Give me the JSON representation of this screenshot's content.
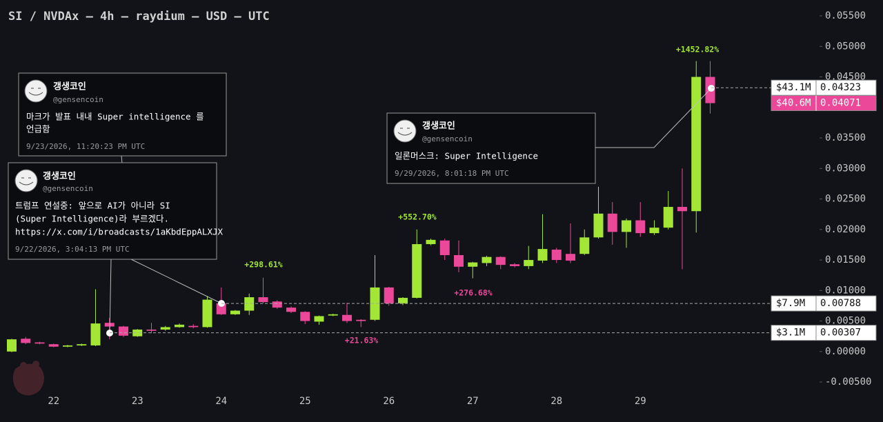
{
  "chart_data": {
    "type": "candlestick",
    "title": "SI / NVDAx — 4h — raydium — USD — UTC",
    "categories": [
      null,
      null,
      null,
      "22",
      null,
      null,
      null,
      null,
      null,
      "23",
      null,
      null,
      null,
      null,
      null,
      "24",
      null,
      null,
      null,
      null,
      null,
      "25",
      null,
      null,
      null,
      null,
      null,
      "26",
      null,
      null,
      null,
      null,
      null,
      "27",
      null,
      null,
      null,
      null,
      null,
      "28",
      null,
      null,
      null,
      null,
      null,
      "29",
      null,
      null,
      null,
      null,
      null
    ],
    "open": [
      0.0,
      0.0021,
      0.0015,
      0.0012,
      0.0008,
      0.001,
      0.001,
      0.0047,
      0.0041,
      0.0025,
      0.0036,
      0.0036,
      0.004,
      0.0042,
      0.004,
      0.0079,
      0.0061,
      0.0067,
      0.0089,
      0.0082,
      0.0072,
      0.0065,
      0.0049,
      0.0059,
      0.006,
      0.0052,
      0.0052,
      0.0105,
      0.0079,
      0.0088,
      0.0176,
      0.0182,
      0.0158,
      0.0139,
      0.0145,
      0.0155,
      0.0143,
      0.014,
      0.0149,
      0.0167,
      0.016,
      0.016,
      0.0187,
      0.0226,
      0.0196,
      0.0215,
      0.0194,
      0.0203,
      0.0237,
      0.023,
      0.045
    ],
    "high": [
      0.0021,
      0.0024,
      0.0016,
      0.0013,
      0.0011,
      0.0013,
      0.0102,
      0.0055,
      0.0042,
      0.0037,
      0.0047,
      0.0042,
      0.0046,
      0.0045,
      0.0091,
      0.0105,
      0.0068,
      0.0095,
      0.0121,
      0.0084,
      0.0074,
      0.0066,
      0.0059,
      0.0062,
      0.008,
      0.0053,
      0.0158,
      0.0106,
      0.0089,
      0.02,
      0.0185,
      0.0185,
      0.0182,
      0.0147,
      0.0157,
      0.0156,
      0.0145,
      0.0173,
      0.0225,
      0.017,
      0.021,
      0.02,
      0.027,
      0.0245,
      0.0218,
      0.0245,
      0.0215,
      0.0263,
      0.03,
      0.0476,
      0.0476
    ],
    "low": [
      -0.0001,
      0.0012,
      0.0012,
      0.0007,
      0.0007,
      0.0009,
      0.0009,
      0.002,
      0.0024,
      0.0024,
      0.003,
      0.0034,
      0.0039,
      0.0038,
      0.0039,
      0.006,
      0.006,
      0.006,
      0.0079,
      0.007,
      0.0063,
      0.0045,
      0.0044,
      0.0058,
      0.0047,
      0.004,
      0.005,
      0.0075,
      0.0076,
      0.0087,
      0.0174,
      0.015,
      0.013,
      0.012,
      0.014,
      0.0135,
      0.0138,
      0.0135,
      0.0145,
      0.0145,
      0.0145,
      0.0158,
      0.0185,
      0.0175,
      0.017,
      0.0188,
      0.0191,
      0.02,
      0.0135,
      0.0195,
      0.039
    ],
    "close": [
      0.002,
      0.0014,
      0.0013,
      0.0008,
      0.001,
      0.0012,
      0.0046,
      0.0041,
      0.0026,
      0.0036,
      0.0034,
      0.004,
      0.0044,
      0.004,
      0.0085,
      0.0061,
      0.0067,
      0.0089,
      0.0081,
      0.0072,
      0.0065,
      0.005,
      0.0058,
      0.0061,
      0.005,
      0.005,
      0.0105,
      0.0079,
      0.0088,
      0.0176,
      0.0183,
      0.0158,
      0.0139,
      0.0146,
      0.0155,
      0.0142,
      0.014,
      0.015,
      0.0168,
      0.015,
      0.0149,
      0.0187,
      0.0226,
      0.0196,
      0.0215,
      0.0194,
      0.0203,
      0.0237,
      0.023,
      0.045,
      0.0407
    ],
    "up_color": "#a3e635",
    "down_color": "#ec4899",
    "ylim": [
      -0.0068,
      0.0576
    ],
    "yticks": [
      {
        "value": -0.005,
        "label": "-0.00500"
      },
      {
        "value": 0,
        "label": "0.00000"
      },
      {
        "value": 0.005,
        "label": "0.00500"
      },
      {
        "value": 0.01,
        "label": "0.01000"
      },
      {
        "value": 0.015,
        "label": "0.01500"
      },
      {
        "value": 0.02,
        "label": "0.02000"
      },
      {
        "value": 0.025,
        "label": "0.02500"
      },
      {
        "value": 0.03,
        "label": "0.03000"
      },
      {
        "value": 0.035,
        "label": "0.03500"
      },
      {
        "value": 0.04,
        "label": "0.04000"
      },
      {
        "value": 0.045,
        "label": "0.04500"
      },
      {
        "value": 0.05,
        "label": "0.05000"
      },
      {
        "value": 0.055,
        "label": "0.05500"
      }
    ],
    "price_lines": [
      {
        "value": 0.04323,
        "market_cap": "$43.1M",
        "color": "#ffffff"
      },
      {
        "value": 0.04071,
        "market_cap": "$40.6M",
        "color": "#ec4899"
      },
      {
        "value": 0.00788,
        "market_cap": "$7.9M",
        "color": "#ffffff"
      },
      {
        "value": 0.00307,
        "market_cap": "$3.1M",
        "color": "#ffffff"
      }
    ],
    "annotations": [
      {
        "text": "+1452.82%",
        "color": "#a3e635"
      },
      {
        "text": "+298.61%",
        "color": "#a3e635"
      },
      {
        "text": "+552.70%",
        "color": "#a3e635"
      },
      {
        "text": "+276.68%",
        "color": "#ec4899"
      },
      {
        "text": "+21.63%",
        "color": "#ec4899"
      }
    ],
    "tweets": [
      {
        "name": "갱생코인",
        "handle": "@gensencoin",
        "lines": [
          "마크가 발표 내내 Super intelligence 를",
          "언급함"
        ],
        "time": "9/23/2026, 11:20:23 PM UTC"
      },
      {
        "name": "갱생코인",
        "handle": "@gensencoin",
        "lines": [
          "트럼프 연설중: 앞으로 AI가 아니라 SI",
          "(Super Intelligence)라 부르겠다.",
          "https://x.com/i/broadcasts/1aKbdEppALXJX"
        ],
        "time": "9/22/2026, 3:04:13 PM UTC"
      },
      {
        "name": "갱생코인",
        "handle": "@gensencoin",
        "lines": [
          "일론머스크: Super Intelligence"
        ],
        "time": "9/29/2026, 8:01:18 PM UTC"
      }
    ]
  }
}
